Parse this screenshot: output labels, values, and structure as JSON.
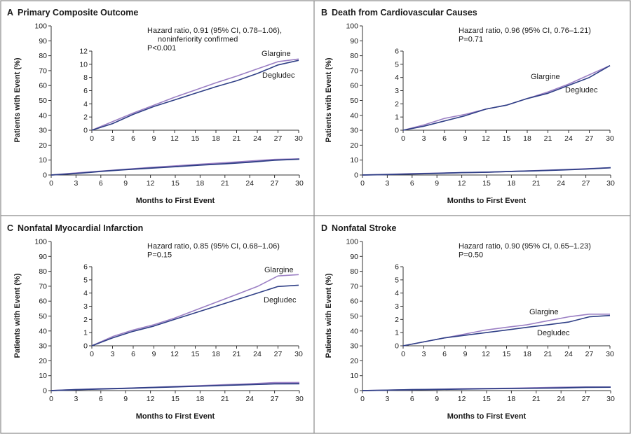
{
  "colors": {
    "glargine": "#9b7fc4",
    "degludec": "#2f3f86",
    "frame": "#8a8a8a",
    "axis": "#333333"
  },
  "chart_data": [
    {
      "id": "A",
      "type": "line",
      "panel_letter": "A",
      "title": "Primary Composite Outcome",
      "xlabel": "Months to First Event",
      "ylabel": "Patients with Event (%)",
      "xlim": [
        0,
        30
      ],
      "ylim": [
        0,
        100
      ],
      "xticks": [
        0,
        3,
        6,
        9,
        12,
        15,
        18,
        21,
        24,
        27,
        30
      ],
      "yticks": [
        0,
        10,
        20,
        30,
        40,
        50,
        60,
        70,
        80,
        90,
        100
      ],
      "annotation": [
        "Hazard ratio, 0.91 (95% CI, 0.78–1.06),",
        "noninferiority confirmed",
        "P<0.001"
      ],
      "inset": {
        "xlim": [
          0,
          30
        ],
        "ylim": [
          0,
          12
        ],
        "xticks": [
          0,
          3,
          6,
          9,
          12,
          15,
          18,
          21,
          24,
          27,
          30
        ],
        "yticks": [
          0,
          2,
          4,
          6,
          8,
          10,
          12
        ]
      },
      "series": [
        {
          "name": "Glargine",
          "x": [
            0,
            3,
            6,
            9,
            12,
            15,
            18,
            21,
            24,
            27,
            30
          ],
          "y": [
            0,
            1.3,
            2.6,
            3.8,
            5.0,
            6.1,
            7.2,
            8.2,
            9.3,
            10.4,
            10.8
          ]
        },
        {
          "name": "Degludec",
          "x": [
            0,
            3,
            6,
            9,
            12,
            15,
            18,
            21,
            24,
            27,
            30
          ],
          "y": [
            0,
            1.0,
            2.4,
            3.6,
            4.6,
            5.6,
            6.6,
            7.5,
            8.6,
            9.9,
            10.6
          ]
        }
      ]
    },
    {
      "id": "B",
      "type": "line",
      "panel_letter": "B",
      "title": "Death from Cardiovascular Causes",
      "xlabel": "Months to First Event",
      "ylabel": "Patients with Event (%)",
      "xlim": [
        0,
        30
      ],
      "ylim": [
        0,
        100
      ],
      "xticks": [
        0,
        3,
        6,
        9,
        12,
        15,
        18,
        21,
        24,
        27,
        30
      ],
      "yticks": [
        0,
        10,
        20,
        30,
        40,
        50,
        60,
        70,
        80,
        90,
        100
      ],
      "annotation": [
        "Hazard ratio, 0.96 (95% CI, 0.76–1.21)",
        "P=0.71"
      ],
      "inset": {
        "xlim": [
          0,
          30
        ],
        "ylim": [
          0,
          6
        ],
        "xticks": [
          0,
          3,
          6,
          9,
          12,
          15,
          18,
          21,
          24,
          27,
          30
        ],
        "yticks": [
          0,
          1,
          2,
          3,
          4,
          5,
          6
        ]
      },
      "series": [
        {
          "name": "Glargine",
          "x": [
            0,
            3,
            6,
            9,
            12,
            15,
            18,
            21,
            24,
            27,
            30
          ],
          "y": [
            0,
            0.4,
            0.9,
            1.2,
            1.6,
            1.9,
            2.4,
            2.9,
            3.5,
            4.2,
            4.9
          ]
        },
        {
          "name": "Degludec",
          "x": [
            0,
            3,
            6,
            9,
            12,
            15,
            18,
            21,
            24,
            27,
            30
          ],
          "y": [
            0,
            0.3,
            0.7,
            1.1,
            1.6,
            1.9,
            2.4,
            2.8,
            3.4,
            4.0,
            4.9
          ]
        }
      ]
    },
    {
      "id": "C",
      "type": "line",
      "panel_letter": "C",
      "title": "Nonfatal Myocardial Infarction",
      "xlabel": "Months to First Event",
      "ylabel": "Patients with Event (%)",
      "xlim": [
        0,
        30
      ],
      "ylim": [
        0,
        100
      ],
      "xticks": [
        0,
        3,
        6,
        9,
        12,
        15,
        18,
        21,
        24,
        27,
        30
      ],
      "yticks": [
        0,
        10,
        20,
        30,
        40,
        50,
        60,
        70,
        80,
        90,
        100
      ],
      "annotation": [
        "Hazard ratio, 0.85 (95% CI, 0.68–1.06)",
        "P=0.15"
      ],
      "inset": {
        "xlim": [
          0,
          30
        ],
        "ylim": [
          0,
          6
        ],
        "xticks": [
          0,
          3,
          6,
          9,
          12,
          15,
          18,
          21,
          24,
          27,
          30
        ],
        "yticks": [
          0,
          1,
          2,
          3,
          4,
          5,
          6
        ]
      },
      "series": [
        {
          "name": "Glargine",
          "x": [
            0,
            3,
            6,
            9,
            12,
            15,
            18,
            21,
            24,
            27,
            30
          ],
          "y": [
            0,
            0.7,
            1.2,
            1.6,
            2.1,
            2.7,
            3.3,
            3.9,
            4.5,
            5.3,
            5.4
          ]
        },
        {
          "name": "Degludec",
          "x": [
            0,
            3,
            6,
            9,
            12,
            15,
            18,
            21,
            24,
            27,
            30
          ],
          "y": [
            0,
            0.6,
            1.1,
            1.5,
            2.0,
            2.5,
            3.0,
            3.5,
            4.0,
            4.5,
            4.6
          ]
        }
      ]
    },
    {
      "id": "D",
      "type": "line",
      "panel_letter": "D",
      "title": "Nonfatal Stroke",
      "xlabel": "Months to First Event",
      "ylabel": "Patients with Event (%)",
      "xlim": [
        0,
        30
      ],
      "ylim": [
        0,
        100
      ],
      "xticks": [
        0,
        3,
        6,
        9,
        12,
        15,
        18,
        21,
        24,
        27,
        30
      ],
      "yticks": [
        0,
        10,
        20,
        30,
        40,
        50,
        60,
        70,
        80,
        90,
        100
      ],
      "annotation": [
        "Hazard ratio, 0.90 (95% CI, 0.65–1.23)",
        "P=0.50"
      ],
      "inset": {
        "xlim": [
          0,
          30
        ],
        "ylim": [
          0,
          6
        ],
        "xticks": [
          0,
          3,
          6,
          9,
          12,
          15,
          18,
          21,
          24,
          27,
          30
        ],
        "yticks": [
          0,
          1,
          2,
          3,
          4,
          5,
          6
        ]
      },
      "series": [
        {
          "name": "Glargine",
          "x": [
            0,
            3,
            6,
            9,
            12,
            15,
            18,
            21,
            24,
            27,
            30
          ],
          "y": [
            0,
            0.3,
            0.6,
            0.9,
            1.2,
            1.4,
            1.6,
            1.9,
            2.2,
            2.4,
            2.4
          ]
        },
        {
          "name": "Degludec",
          "x": [
            0,
            3,
            6,
            9,
            12,
            15,
            18,
            21,
            24,
            27,
            30
          ],
          "y": [
            0,
            0.3,
            0.6,
            0.8,
            1.0,
            1.2,
            1.4,
            1.6,
            1.8,
            2.2,
            2.3
          ]
        }
      ]
    }
  ]
}
